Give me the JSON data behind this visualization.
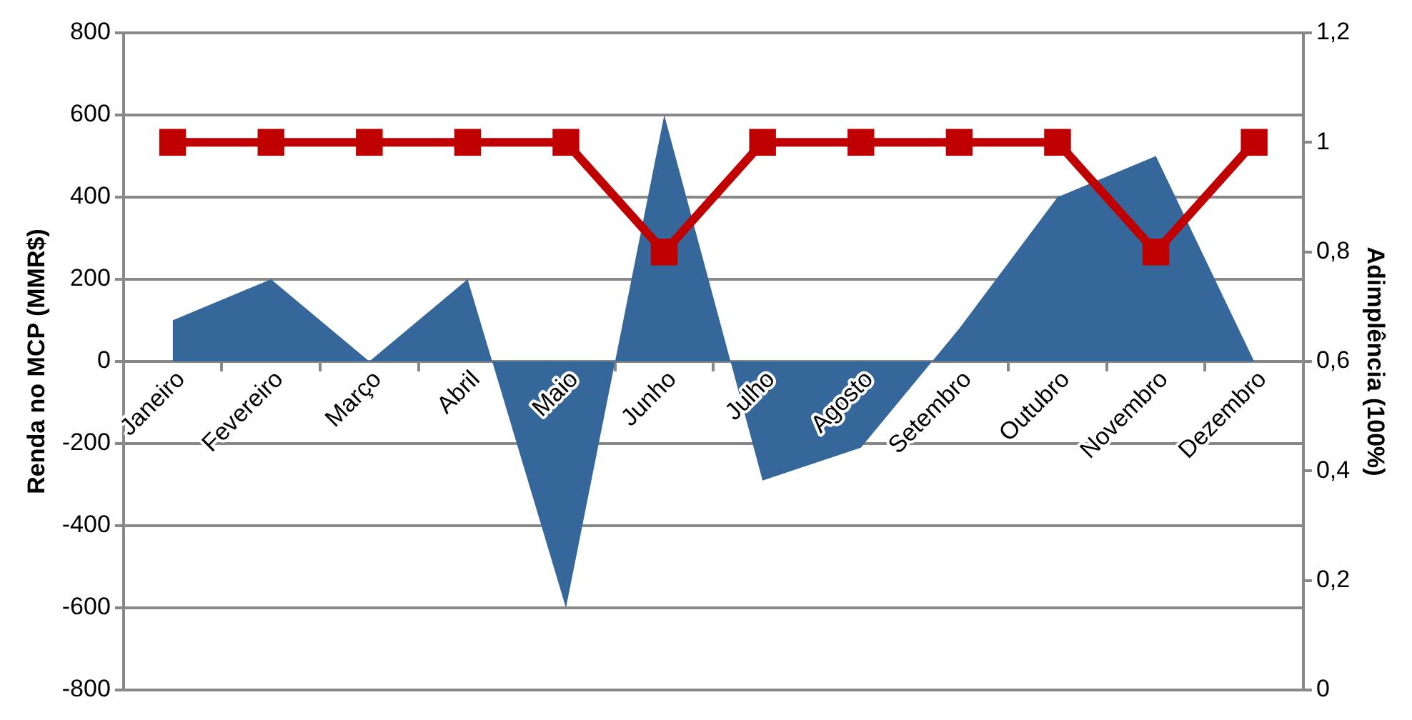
{
  "chart_data": {
    "type": "area",
    "categories": [
      "Janeiro",
      "Fevereiro",
      "Março",
      "Abril",
      "Maio",
      "Junho",
      "Julho",
      "Agosto",
      "Setembro",
      "Outubro",
      "Novembro",
      "Dezembro"
    ],
    "series": [
      {
        "color": "#35679a",
        "values": [
          100,
          200,
          0,
          200,
          -600,
          600,
          -290,
          -210,
          80,
          400,
          500,
          0
        ]
      },
      {
        "type": "line",
        "axis": "y2",
        "color": "#c00000",
        "marker": "square",
        "values": [
          1,
          1,
          1,
          1,
          1,
          0.8,
          1,
          1,
          1,
          1,
          0.8,
          1
        ]
      }
    ],
    "ylabel": "Renda no MCP (MMR$)",
    "y2label": "Adimplência (100%)",
    "ylim": [
      -800,
      800
    ],
    "yticks": [
      -800,
      -600,
      -400,
      -200,
      0,
      200,
      400,
      600,
      800
    ],
    "y2lim": [
      0,
      1.2
    ],
    "y2ticks": [
      0,
      {
        "value": 0.2,
        "label": "0,2"
      },
      {
        "value": 0.4,
        "label": "0,4"
      },
      {
        "value": 0.6,
        "label": "0,6"
      },
      {
        "value": 0.8,
        "label": "0,8"
      },
      1,
      {
        "value": 1.2,
        "label": "1,2"
      }
    ],
    "grid": "y",
    "legend": false
  }
}
